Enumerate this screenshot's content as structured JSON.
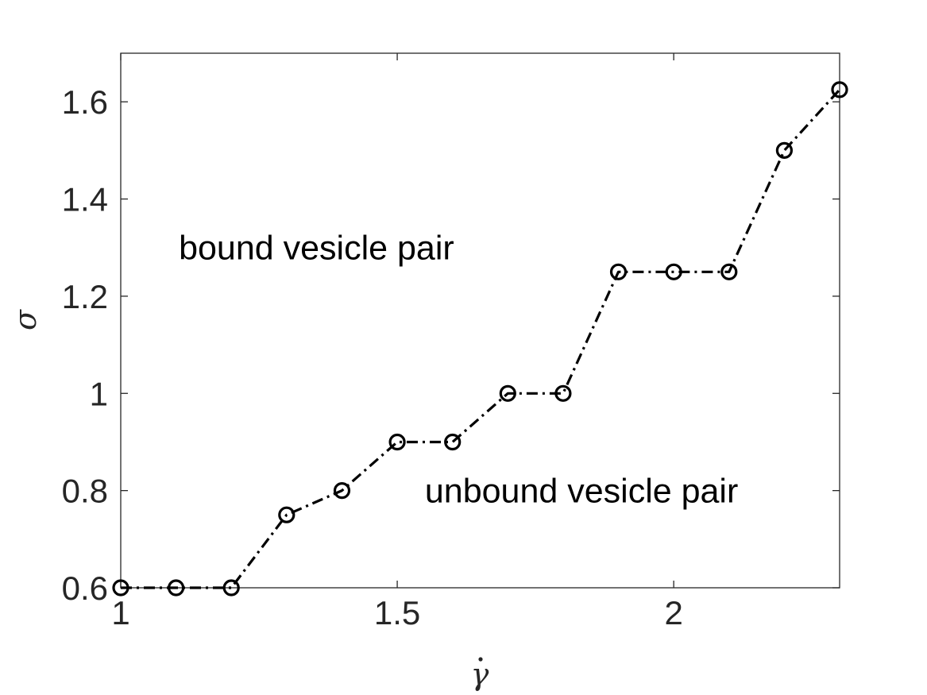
{
  "chart_data": {
    "type": "line",
    "title": "",
    "xlabel": "γ̇",
    "ylabel": "σ",
    "xlim": [
      1,
      2.3
    ],
    "ylim": [
      0.6,
      1.7
    ],
    "xticks": [
      1,
      1.5,
      2
    ],
    "xtick_labels": [
      "1",
      "1.5",
      "2"
    ],
    "yticks": [
      0.6,
      0.8,
      1.0,
      1.2,
      1.4,
      1.6
    ],
    "ytick_labels": [
      "0.6",
      "0.8",
      "1",
      "1.2",
      "1.4",
      "1.6"
    ],
    "grid": false,
    "legend": "none",
    "series": [
      {
        "x": [
          1.0,
          1.1,
          1.2,
          1.3,
          1.4,
          1.5,
          1.6,
          1.7,
          1.8,
          1.9,
          2.0,
          2.1,
          2.2,
          2.3
        ],
        "y": [
          0.6,
          0.6,
          0.6,
          0.75,
          0.8,
          0.9,
          0.9,
          1.0,
          1.0,
          1.25,
          1.25,
          1.25,
          1.5,
          1.625
        ],
        "color": "#000000",
        "line_style": "dash-dot",
        "marker": "circle"
      }
    ],
    "annotations": [
      {
        "text": "bound vesicle pair",
        "x": 1.105,
        "y": 1.3
      },
      {
        "text": "unbound vesicle pair",
        "x": 1.55,
        "y": 0.8
      }
    ]
  }
}
